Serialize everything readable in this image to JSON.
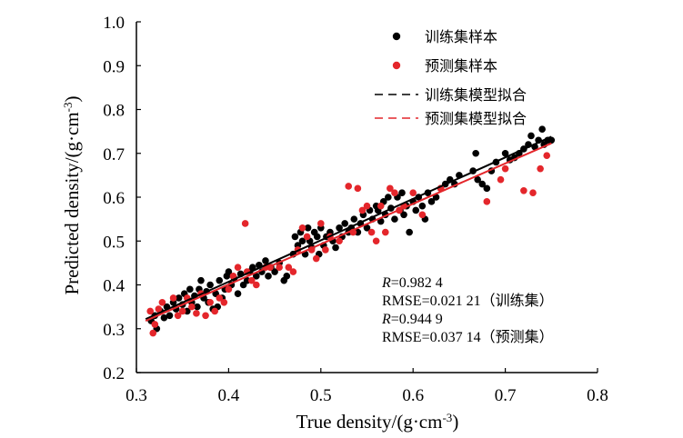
{
  "chart_data": {
    "type": "scatter",
    "xlabel": "True density/(g·cm",
    "xlabel_sup": "-3",
    "xlabel_close": ")",
    "ylabel": "Predicted density/(g·cm",
    "ylabel_sup": "-3",
    "ylabel_close": ")",
    "xlim": [
      0.3,
      0.8
    ],
    "ylim": [
      0.2,
      1.0
    ],
    "xticks": [
      "0.3",
      "0.4",
      "0.5",
      "0.6",
      "0.7",
      "0.8"
    ],
    "yticks": [
      "0.2",
      "0.3",
      "0.4",
      "0.5",
      "0.6",
      "0.7",
      "0.8",
      "0.9",
      "1.0"
    ],
    "legend_position": "top-right",
    "series": [
      {
        "name": "训练集样本",
        "kind": "points",
        "color": "#000000",
        "points": [
          [
            0.316,
            0.318
          ],
          [
            0.32,
            0.33
          ],
          [
            0.322,
            0.3
          ],
          [
            0.326,
            0.34
          ],
          [
            0.33,
            0.325
          ],
          [
            0.333,
            0.35
          ],
          [
            0.336,
            0.33
          ],
          [
            0.34,
            0.36
          ],
          [
            0.343,
            0.345
          ],
          [
            0.346,
            0.37
          ],
          [
            0.35,
            0.355
          ],
          [
            0.352,
            0.38
          ],
          [
            0.355,
            0.34
          ],
          [
            0.358,
            0.39
          ],
          [
            0.36,
            0.36
          ],
          [
            0.363,
            0.375
          ],
          [
            0.366,
            0.35
          ],
          [
            0.368,
            0.39
          ],
          [
            0.37,
            0.41
          ],
          [
            0.373,
            0.37
          ],
          [
            0.376,
            0.385
          ],
          [
            0.378,
            0.36
          ],
          [
            0.38,
            0.4
          ],
          [
            0.383,
            0.345
          ],
          [
            0.386,
            0.38
          ],
          [
            0.388,
            0.35
          ],
          [
            0.39,
            0.41
          ],
          [
            0.393,
            0.37
          ],
          [
            0.396,
            0.39
          ],
          [
            0.398,
            0.42
          ],
          [
            0.4,
            0.43
          ],
          [
            0.403,
            0.4
          ],
          [
            0.406,
            0.415
          ],
          [
            0.41,
            0.38
          ],
          [
            0.413,
            0.425
          ],
          [
            0.416,
            0.4
          ],
          [
            0.42,
            0.41
          ],
          [
            0.423,
            0.43
          ],
          [
            0.426,
            0.44
          ],
          [
            0.43,
            0.42
          ],
          [
            0.433,
            0.445
          ],
          [
            0.436,
            0.43
          ],
          [
            0.44,
            0.455
          ],
          [
            0.443,
            0.42
          ],
          [
            0.446,
            0.44
          ],
          [
            0.45,
            0.43
          ],
          [
            0.455,
            0.45
          ],
          [
            0.46,
            0.41
          ],
          [
            0.463,
            0.42
          ],
          [
            0.47,
            0.47
          ],
          [
            0.472,
            0.51
          ],
          [
            0.475,
            0.49
          ],
          [
            0.478,
            0.52
          ],
          [
            0.48,
            0.5
          ],
          [
            0.483,
            0.47
          ],
          [
            0.486,
            0.53
          ],
          [
            0.488,
            0.5
          ],
          [
            0.49,
            0.485
          ],
          [
            0.493,
            0.52
          ],
          [
            0.496,
            0.51
          ],
          [
            0.498,
            0.47
          ],
          [
            0.5,
            0.53
          ],
          [
            0.503,
            0.49
          ],
          [
            0.506,
            0.51
          ],
          [
            0.51,
            0.52
          ],
          [
            0.513,
            0.5
          ],
          [
            0.516,
            0.485
          ],
          [
            0.52,
            0.53
          ],
          [
            0.523,
            0.51
          ],
          [
            0.526,
            0.54
          ],
          [
            0.53,
            0.52
          ],
          [
            0.533,
            0.53
          ],
          [
            0.536,
            0.55
          ],
          [
            0.54,
            0.52
          ],
          [
            0.543,
            0.54
          ],
          [
            0.546,
            0.56
          ],
          [
            0.55,
            0.53
          ],
          [
            0.553,
            0.57
          ],
          [
            0.556,
            0.55
          ],
          [
            0.56,
            0.58
          ],
          [
            0.562,
            0.57
          ],
          [
            0.565,
            0.545
          ],
          [
            0.568,
            0.59
          ],
          [
            0.57,
            0.56
          ],
          [
            0.573,
            0.6
          ],
          [
            0.576,
            0.575
          ],
          [
            0.58,
            0.55
          ],
          [
            0.583,
            0.6
          ],
          [
            0.586,
            0.57
          ],
          [
            0.588,
            0.61
          ],
          [
            0.59,
            0.56
          ],
          [
            0.593,
            0.58
          ],
          [
            0.596,
            0.52
          ],
          [
            0.6,
            0.59
          ],
          [
            0.603,
            0.57
          ],
          [
            0.606,
            0.6
          ],
          [
            0.61,
            0.58
          ],
          [
            0.613,
            0.55
          ],
          [
            0.616,
            0.61
          ],
          [
            0.62,
            0.59
          ],
          [
            0.625,
            0.6
          ],
          [
            0.63,
            0.62
          ],
          [
            0.635,
            0.63
          ],
          [
            0.64,
            0.64
          ],
          [
            0.645,
            0.63
          ],
          [
            0.65,
            0.65
          ],
          [
            0.665,
            0.66
          ],
          [
            0.668,
            0.7
          ],
          [
            0.67,
            0.64
          ],
          [
            0.675,
            0.63
          ],
          [
            0.68,
            0.62
          ],
          [
            0.685,
            0.66
          ],
          [
            0.69,
            0.68
          ],
          [
            0.7,
            0.7
          ],
          [
            0.705,
            0.685
          ],
          [
            0.71,
            0.69
          ],
          [
            0.715,
            0.7
          ],
          [
            0.72,
            0.71
          ],
          [
            0.725,
            0.72
          ],
          [
            0.728,
            0.74
          ],
          [
            0.732,
            0.715
          ],
          [
            0.736,
            0.73
          ],
          [
            0.74,
            0.755
          ],
          [
            0.742,
            0.72
          ],
          [
            0.746,
            0.73
          ],
          [
            0.75,
            0.73
          ]
        ]
      },
      {
        "name": "预测集样本",
        "kind": "points",
        "color": "#e4262b",
        "points": [
          [
            0.315,
            0.34
          ],
          [
            0.318,
            0.29
          ],
          [
            0.32,
            0.31
          ],
          [
            0.324,
            0.345
          ],
          [
            0.328,
            0.36
          ],
          [
            0.34,
            0.37
          ],
          [
            0.345,
            0.33
          ],
          [
            0.35,
            0.34
          ],
          [
            0.355,
            0.37
          ],
          [
            0.36,
            0.35
          ],
          [
            0.365,
            0.335
          ],
          [
            0.37,
            0.38
          ],
          [
            0.375,
            0.33
          ],
          [
            0.38,
            0.36
          ],
          [
            0.385,
            0.34
          ],
          [
            0.39,
            0.37
          ],
          [
            0.395,
            0.36
          ],
          [
            0.4,
            0.39
          ],
          [
            0.405,
            0.42
          ],
          [
            0.41,
            0.44
          ],
          [
            0.418,
            0.54
          ],
          [
            0.42,
            0.43
          ],
          [
            0.425,
            0.41
          ],
          [
            0.43,
            0.4
          ],
          [
            0.44,
            0.44
          ],
          [
            0.445,
            0.44
          ],
          [
            0.455,
            0.44
          ],
          [
            0.465,
            0.44
          ],
          [
            0.47,
            0.43
          ],
          [
            0.475,
            0.48
          ],
          [
            0.48,
            0.53
          ],
          [
            0.485,
            0.51
          ],
          [
            0.49,
            0.48
          ],
          [
            0.495,
            0.46
          ],
          [
            0.5,
            0.54
          ],
          [
            0.505,
            0.48
          ],
          [
            0.51,
            0.51
          ],
          [
            0.52,
            0.5
          ],
          [
            0.53,
            0.625
          ],
          [
            0.535,
            0.52
          ],
          [
            0.54,
            0.62
          ],
          [
            0.545,
            0.57
          ],
          [
            0.55,
            0.58
          ],
          [
            0.555,
            0.52
          ],
          [
            0.56,
            0.5
          ],
          [
            0.565,
            0.58
          ],
          [
            0.57,
            0.52
          ],
          [
            0.575,
            0.62
          ],
          [
            0.58,
            0.61
          ],
          [
            0.585,
            0.57
          ],
          [
            0.59,
            0.58
          ],
          [
            0.6,
            0.61
          ],
          [
            0.61,
            0.56
          ],
          [
            0.63,
            0.62
          ],
          [
            0.68,
            0.59
          ],
          [
            0.695,
            0.64
          ],
          [
            0.7,
            0.665
          ],
          [
            0.72,
            0.615
          ],
          [
            0.73,
            0.61
          ],
          [
            0.738,
            0.665
          ],
          [
            0.745,
            0.695
          ]
        ]
      },
      {
        "name": "训练集模型拟合",
        "kind": "fit",
        "color": "#000000",
        "line": [
          [
            0.31,
            0.322
          ],
          [
            0.75,
            0.738
          ]
        ]
      },
      {
        "name": "预测集模型拟合",
        "kind": "fit",
        "color": "#e4262b",
        "line": [
          [
            0.31,
            0.318
          ],
          [
            0.75,
            0.723
          ]
        ]
      }
    ],
    "annotations": [
      {
        "italic": "R",
        "text": "=0.982 4"
      },
      {
        "italic": "",
        "text": "RMSE=0.021 21（训练集）"
      },
      {
        "italic": "R",
        "text": "=0.944 9"
      },
      {
        "italic": "",
        "text": "RMSE=0.037 14（预测集）"
      }
    ]
  }
}
